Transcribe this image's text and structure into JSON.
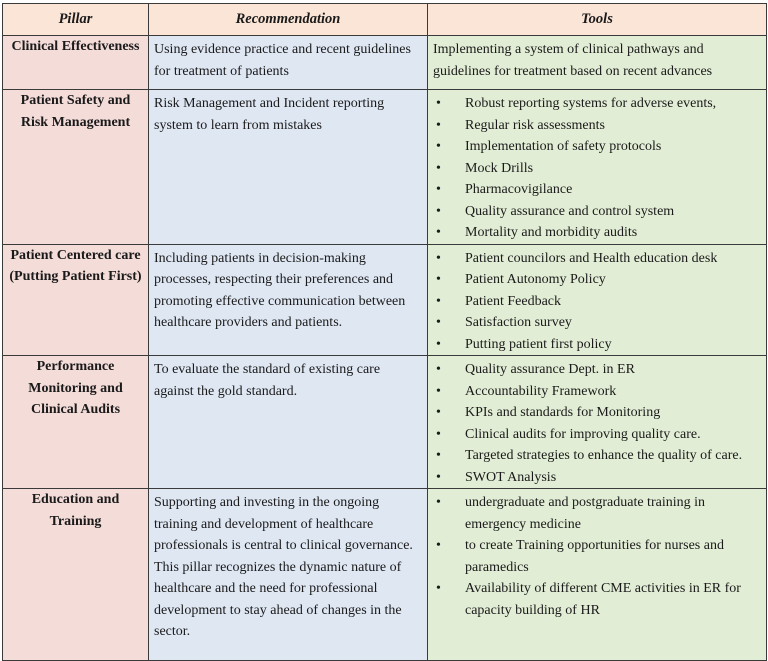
{
  "headers": {
    "pillar": "Pillar",
    "recommendation": "Recommendation",
    "tools": "Tools"
  },
  "rows": [
    {
      "pillar": "Clinical Effectiveness",
      "recommendation": "Using evidence practice and recent guidelines for treatment of patients",
      "tools_text": "Implementing a system of clinical pathways and guidelines for treatment based on recent advances",
      "tools": []
    },
    {
      "pillar": "Patient Safety and Risk Management",
      "recommendation": "Risk Management and Incident reporting system to learn from mistakes",
      "tools_text": "",
      "tools": [
        "Robust reporting systems for adverse events,",
        " Regular risk assessments",
        "Implementation of safety protocols",
        "Mock Drills",
        "Pharmacovigilance",
        "Quality assurance and control  system",
        "Mortality and morbidity audits"
      ]
    },
    {
      "pillar": "Patient Centered care (Putting Patient First)",
      "recommendation": "Including patients in decision-making processes, respecting their preferences and promoting effective communication between healthcare providers and patients.",
      "tools_text": "",
      "tools": [
        "Patient councilors and Health education desk",
        "Patient Autonomy Policy",
        "Patient Feedback",
        "Satisfaction survey",
        "Putting patient first policy"
      ]
    },
    {
      "pillar": "Performance Monitoring and Clinical Audits",
      "recommendation": "To evaluate the standard of existing care against the gold standard.",
      "tools_text": "",
      "tools": [
        "Quality assurance Dept. in ER",
        "Accountability Framework",
        "KPIs and standards for Monitoring",
        "Clinical audits for improving quality care.",
        "Targeted strategies to enhance the quality of care.",
        "SWOT Analysis"
      ]
    },
    {
      "pillar": "Education and Training",
      "recommendation": "Supporting and investing in the ongoing training and development of healthcare professionals is central to clinical governance. This pillar recognizes the dynamic nature of healthcare and the need for professional development to stay ahead of changes in the sector.",
      "tools_text": "",
      "tools": [
        "undergraduate and postgraduate training in emergency medicine",
        "to create Training opportunities for nurses and paramedics",
        "Availability of different CME activities in  ER for capacity building of HR"
      ]
    }
  ]
}
